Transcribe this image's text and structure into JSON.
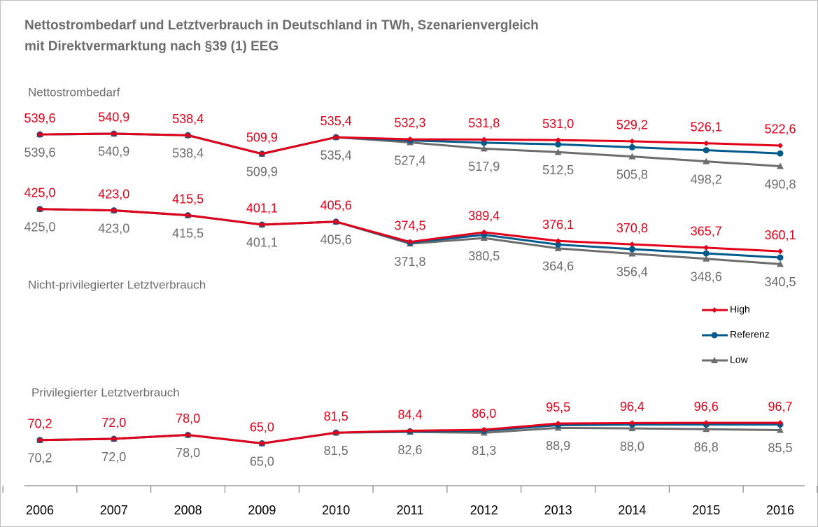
{
  "chart_data": {
    "type": "line",
    "title": [
      "Nettostrombedarf und Letztverbrauch in Deutschland in TWh, Szenarienvergleich",
      "mit Direktvermarktung nach §39 (1) EEG"
    ],
    "categories": [
      "2006",
      "2007",
      "2008",
      "2009",
      "2010",
      "2011",
      "2012",
      "2013",
      "2014",
      "2015",
      "2016"
    ],
    "ylim": [
      0,
      620
    ],
    "series": [
      {
        "name": "High",
        "color": "#e3001b",
        "marker": "diamond"
      },
      {
        "name": "Referenz",
        "color": "#005b8c",
        "marker": "circle"
      },
      {
        "name": "Low",
        "color": "#6d6d6d",
        "marker": "triangle"
      }
    ],
    "groups": [
      {
        "label": "Nettostrombedarf",
        "lines": [
          {
            "values": [
              539.6,
              540.9,
              538.4,
              509.9,
              535.4,
              532.3,
              531.8,
              531.0,
              529.2,
              526.1,
              522.6
            ],
            "value_labels": [
              "539,6",
              "540,9",
              "538,4",
              "509,9",
              "535,4",
              "532,3",
              "531,8",
              "531,0",
              "529,2",
              "526,1",
              "522,6"
            ]
          },
          {
            "values": [
              539.6,
              540.9,
              538.4,
              509.9,
              535.4,
              530.5,
              527.0,
              524.5,
              520.0,
              515.5,
              510.5
            ]
          },
          {
            "values": [
              539.6,
              540.9,
              538.4,
              509.9,
              535.4,
              527.4,
              517.9,
              512.5,
              505.8,
              498.2,
              490.8
            ],
            "value_labels": [
              "539,6",
              "540,9",
              "538,4",
              "509,9",
              "535,4",
              "527,4",
              "517,9",
              "512,5",
              "505,8",
              "498,2",
              "490,8"
            ]
          }
        ]
      },
      {
        "label": "Nicht-privilegierter Letztverbrauch",
        "lines": [
          {
            "values": [
              425.0,
              423.0,
              415.5,
              401.1,
              405.6,
              374.5,
              389.4,
              376.1,
              370.8,
              365.7,
              360.1
            ],
            "value_labels": [
              "425,0",
              "423,0",
              "415,5",
              "401,1",
              "405,6",
              "374,5",
              "389,4",
              "376,1",
              "370,8",
              "365,7",
              "360,1"
            ]
          },
          {
            "values": [
              425.0,
              423.0,
              415.5,
              401.1,
              405.6,
              373.5,
              385.5,
              370.5,
              363.5,
              357.0,
              350.5
            ]
          },
          {
            "values": [
              425.0,
              423.0,
              415.5,
              401.1,
              405.6,
              371.8,
              380.5,
              364.6,
              356.4,
              348.6,
              340.5
            ],
            "value_labels": [
              "425,0",
              "423,0",
              "415,5",
              "401,1",
              "405,6",
              "371,8",
              "380,5",
              "364,6",
              "356,4",
              "348,6",
              "340,5"
            ]
          }
        ]
      },
      {
        "label": "Privilegierter Letztverbrauch",
        "lines": [
          {
            "values": [
              70.2,
              72.0,
              78.0,
              65.0,
              81.5,
              84.4,
              86.0,
              95.5,
              96.4,
              96.6,
              96.7
            ],
            "value_labels": [
              "70,2",
              "72,0",
              "78,0",
              "65,0",
              "81,5",
              "84,4",
              "86,0",
              "95,5",
              "96,4",
              "96,6",
              "96,7"
            ]
          },
          {
            "values": [
              70.2,
              72.0,
              78.0,
              65.0,
              81.5,
              83.5,
              84.5,
              93.0,
              94.0,
              94.0,
              94.0
            ]
          },
          {
            "values": [
              70.2,
              72.0,
              78.0,
              65.0,
              81.5,
              82.6,
              81.3,
              88.9,
              88.0,
              86.8,
              85.5
            ],
            "value_labels": [
              "70,2",
              "72,0",
              "78,0",
              "65,0",
              "81,5",
              "82,6",
              "81,3",
              "88,9",
              "88,0",
              "86,8",
              "85,5"
            ]
          }
        ]
      }
    ]
  }
}
